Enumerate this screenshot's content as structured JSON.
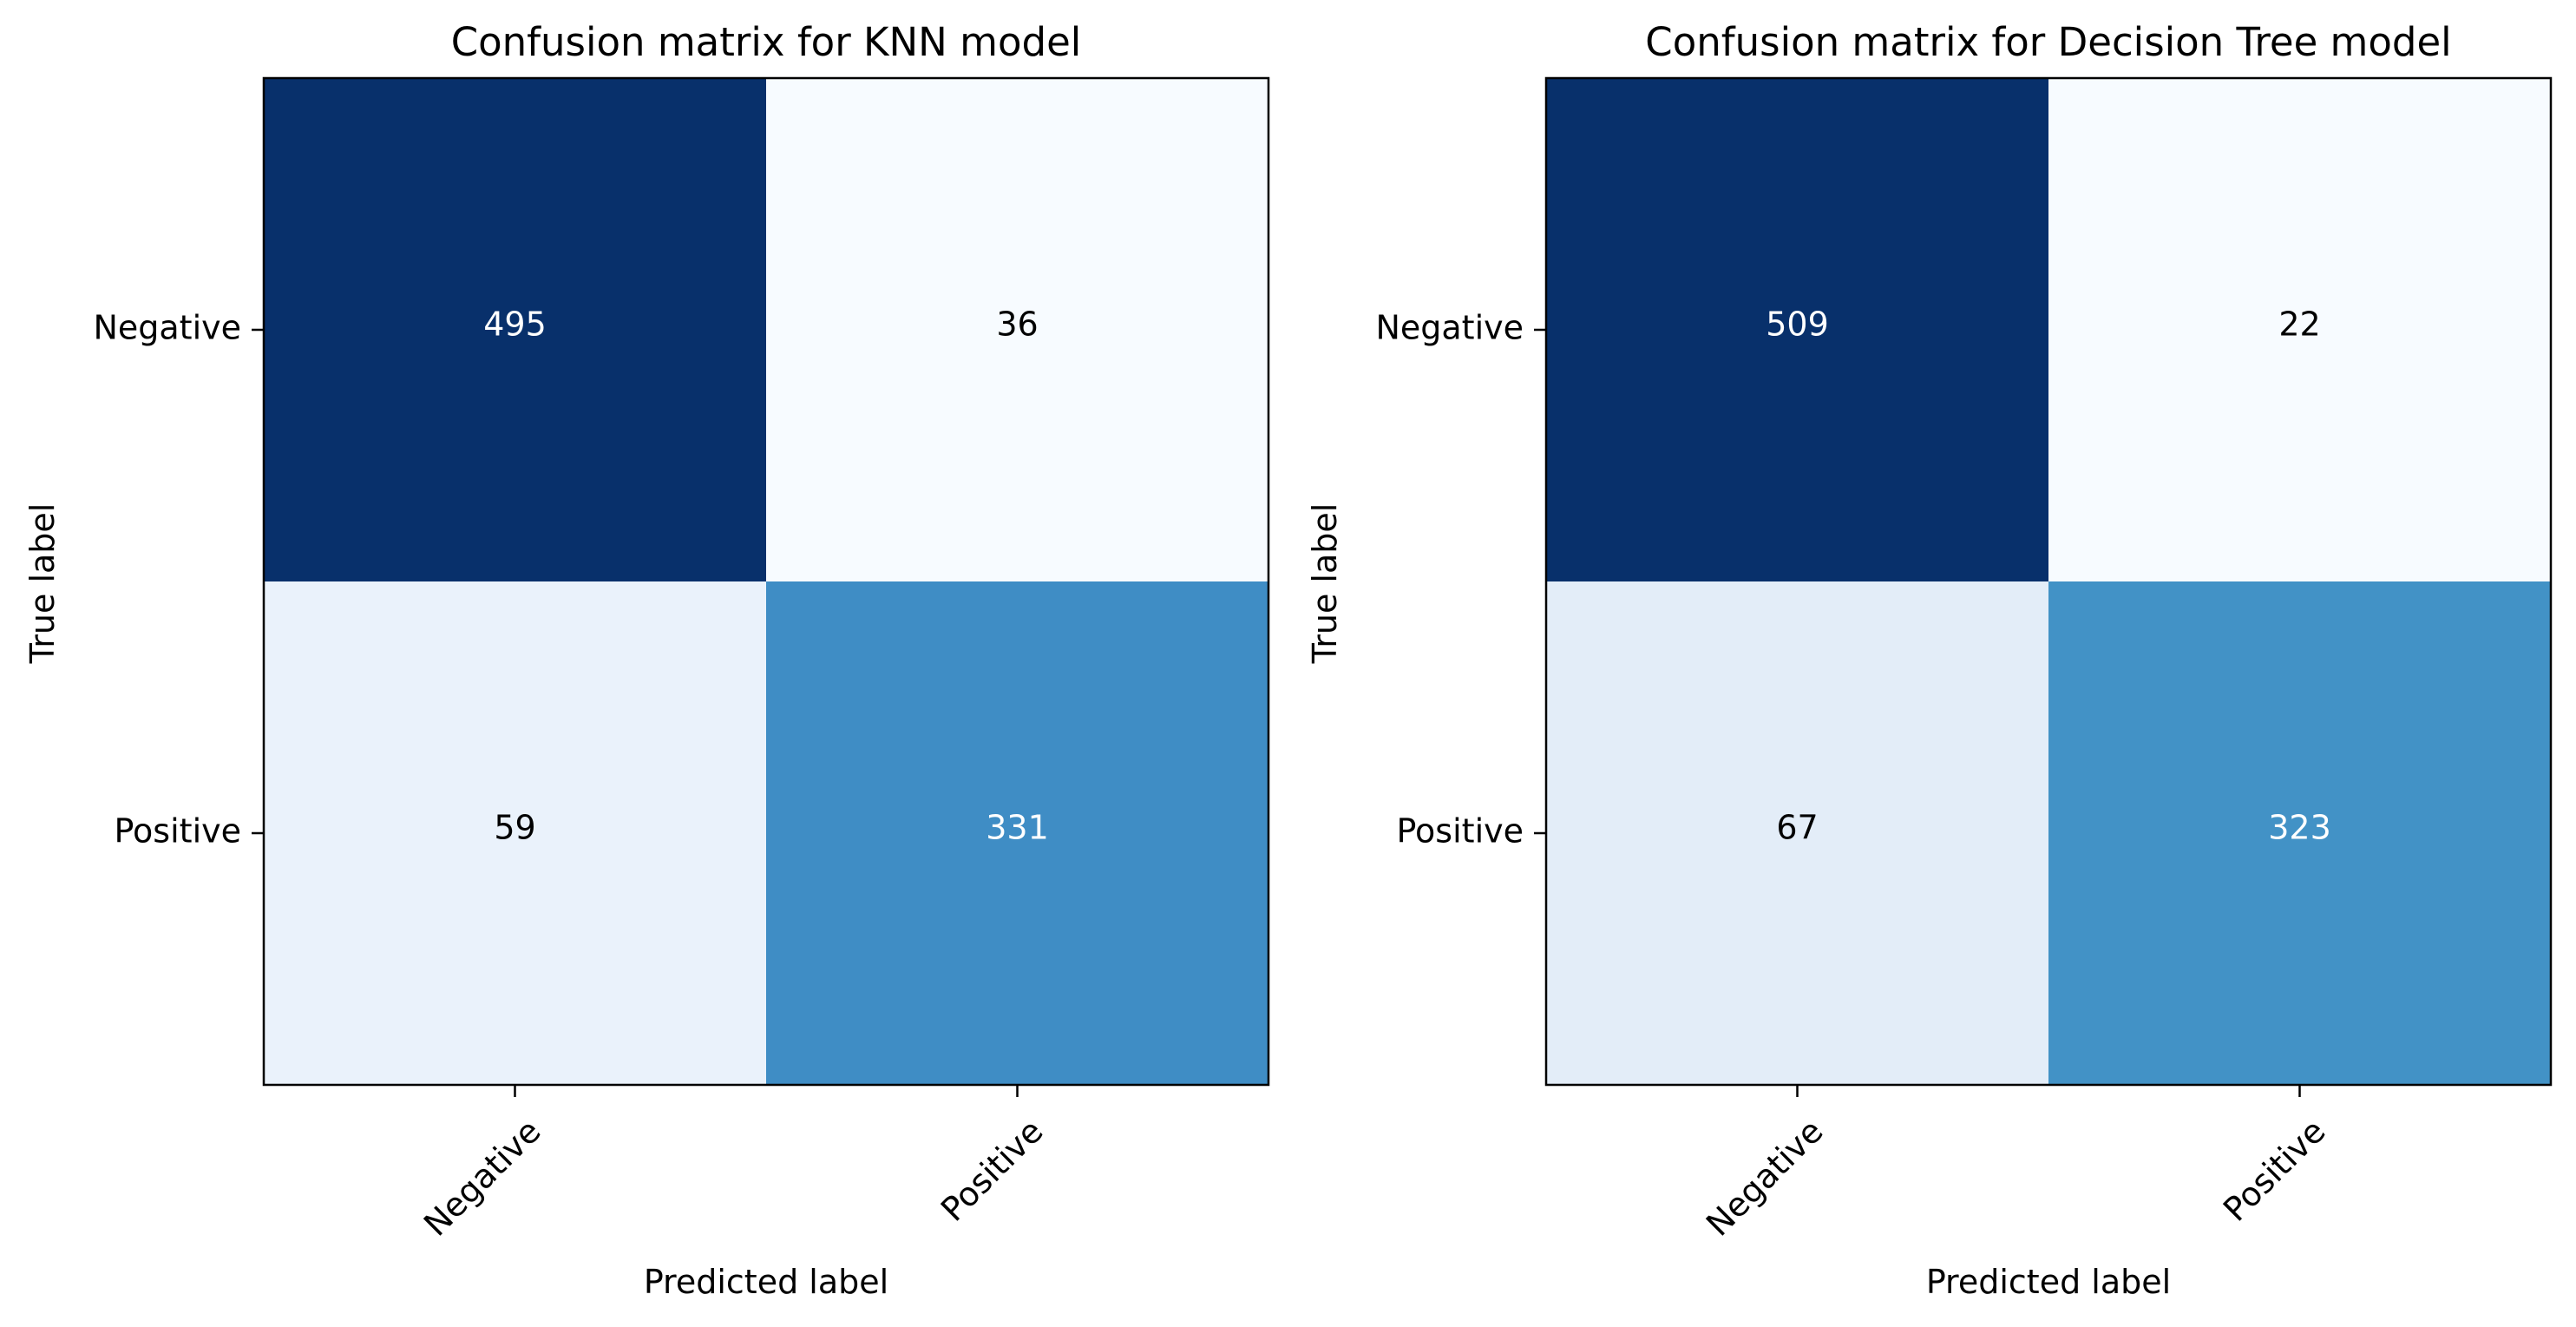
{
  "chart_data": [
    {
      "type": "heatmap",
      "title": "Confusion matrix for KNN model",
      "xlabel": "Predicted label",
      "ylabel": "True label",
      "x_categories": [
        "Negative",
        "Positive"
      ],
      "y_categories": [
        "Negative",
        "Positive"
      ],
      "values": [
        [
          495,
          36
        ],
        [
          59,
          331
        ]
      ],
      "colormap": "Blues",
      "cell_colors": [
        [
          "#08306b",
          "#f7fbff"
        ],
        [
          "#eaf2fb",
          "#3f8dc5"
        ]
      ],
      "text_colors": [
        [
          "#ffffff",
          "#000000"
        ],
        [
          "#000000",
          "#ffffff"
        ]
      ]
    },
    {
      "type": "heatmap",
      "title": "Confusion matrix for Decision Tree model",
      "xlabel": "Predicted label",
      "ylabel": "True label",
      "x_categories": [
        "Negative",
        "Positive"
      ],
      "y_categories": [
        "Negative",
        "Positive"
      ],
      "values": [
        [
          509,
          22
        ],
        [
          67,
          323
        ]
      ],
      "colormap": "Blues",
      "cell_colors": [
        [
          "#08306b",
          "#f7fbff"
        ],
        [
          "#e3edf8",
          "#4292c6"
        ]
      ],
      "text_colors": [
        [
          "#ffffff",
          "#000000"
        ],
        [
          "#000000",
          "#ffffff"
        ]
      ]
    }
  ]
}
